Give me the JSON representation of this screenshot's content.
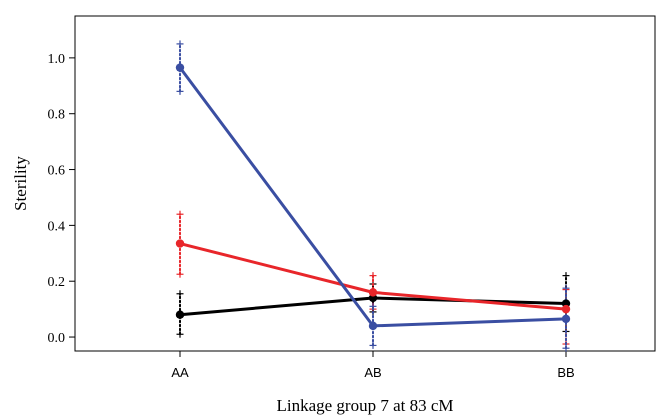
{
  "chart_data": {
    "type": "line",
    "title": "",
    "xlabel": "Linkage group 7 at 83 cM",
    "ylabel": "Sterility",
    "categories": [
      "AA",
      "AB",
      "BB"
    ],
    "yticks": [
      "0.0",
      "0.2",
      "0.4",
      "0.6",
      "0.8",
      "1.0"
    ],
    "ytick_values": [
      0.0,
      0.2,
      0.4,
      0.6,
      0.8,
      1.0
    ],
    "ylim": [
      -0.05,
      1.15
    ],
    "grid": false,
    "legend": "none",
    "series": [
      {
        "color": "#000000",
        "values": [
          0.08,
          0.14,
          0.12
        ],
        "error_low": [
          0.01,
          0.09,
          0.02
        ],
        "error_high": [
          0.155,
          0.19,
          0.22
        ]
      },
      {
        "color": "#e8262a",
        "values": [
          0.335,
          0.16,
          0.1
        ],
        "error_low": [
          0.225,
          0.1,
          -0.025
        ],
        "error_high": [
          0.44,
          0.22,
          0.17
        ]
      },
      {
        "color": "#3a4ea2",
        "values": [
          0.965,
          0.04,
          0.065
        ],
        "error_low": [
          0.88,
          -0.03,
          -0.04
        ],
        "error_high": [
          1.05,
          0.11,
          0.175
        ]
      }
    ]
  }
}
